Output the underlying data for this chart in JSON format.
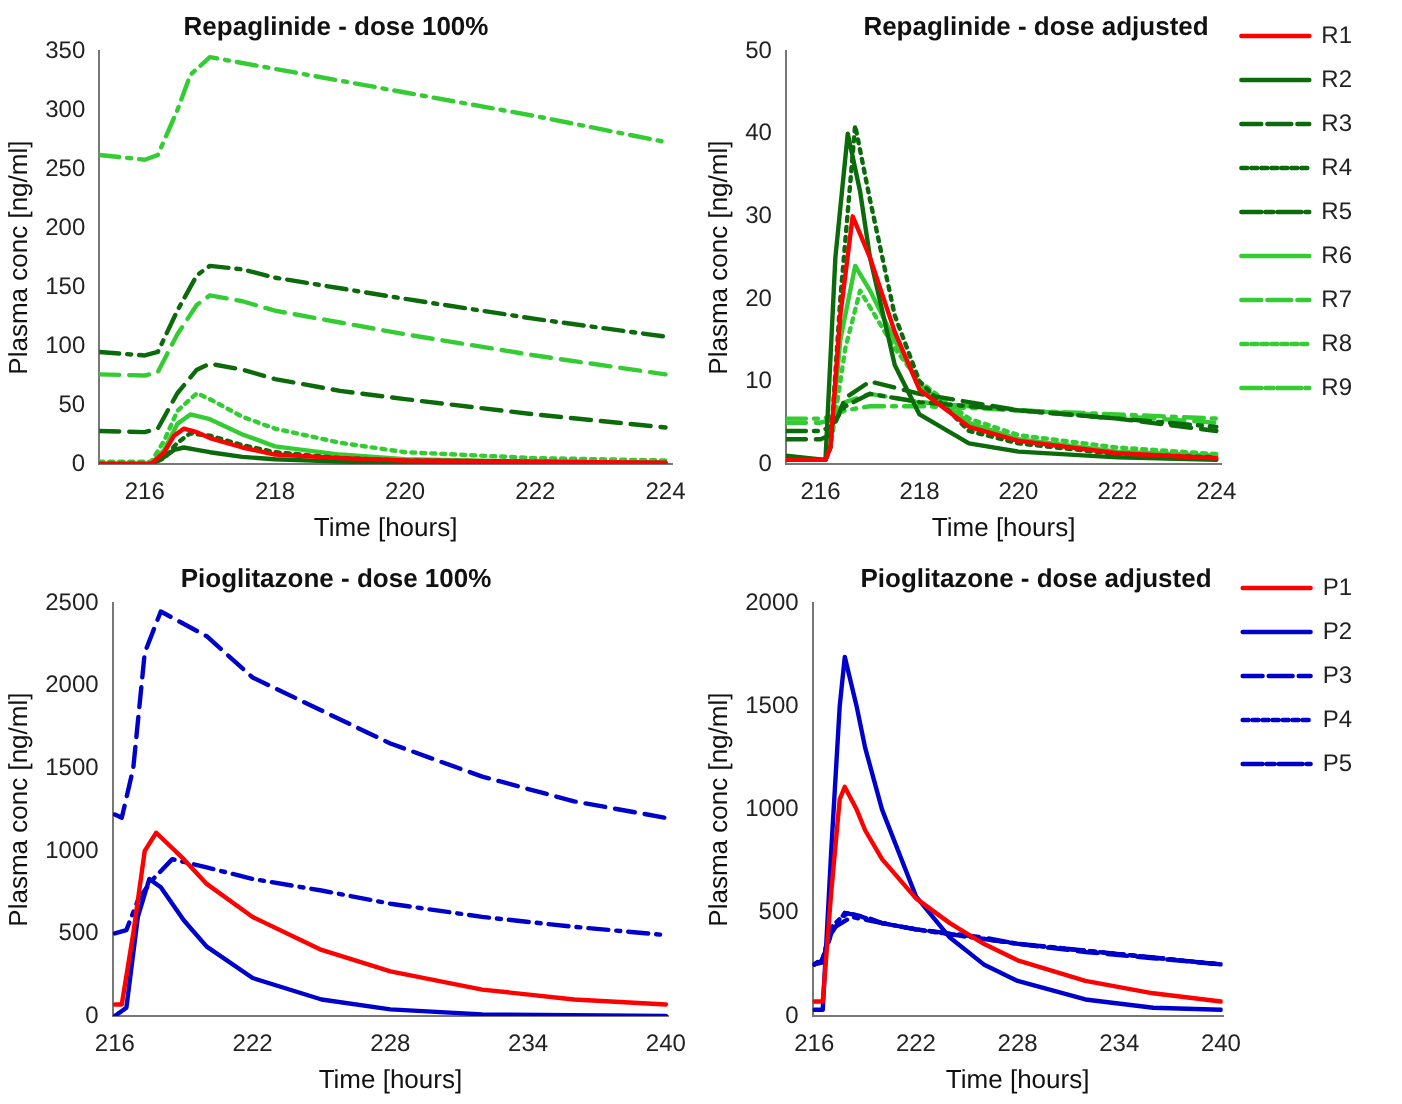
{
  "chart_data": [
    {
      "type": "line",
      "title": "Repaglinide - dose 100%",
      "xlabel": "Time [hours]",
      "ylabel": "Plasma conc [ng/ml]",
      "xlim": [
        215.3,
        224.1
      ],
      "xticks": [
        216,
        218,
        220,
        222,
        224
      ],
      "ylim": [
        0,
        350
      ],
      "yticks": [
        0,
        50,
        100,
        150,
        200,
        250,
        300,
        350
      ],
      "grid": false,
      "legend": false,
      "marker": "none",
      "series": [
        {
          "color": "#ff0000",
          "line_style": "solid",
          "x": [
            215.3,
            216.1,
            216.3,
            216.45,
            216.6,
            216.8,
            217,
            217.5,
            218,
            219,
            220,
            222,
            224
          ],
          "values": [
            0,
            0,
            10,
            24,
            30,
            27,
            22,
            14,
            8,
            5,
            3,
            2,
            1
          ]
        },
        {
          "color": "#0b6b0b",
          "line_style": "solid",
          "x": [
            215.3,
            216.1,
            216.3,
            216.45,
            216.6,
            216.8,
            217,
            217.5,
            218,
            219,
            220,
            222,
            224
          ],
          "values": [
            0,
            0,
            6,
            12,
            14,
            12,
            10,
            6,
            4,
            2,
            1,
            1,
            0
          ]
        },
        {
          "color": "#0b6b0b",
          "line_style": "dashed",
          "x": [
            215.3,
            216,
            216.2,
            216.5,
            216.8,
            217,
            217.5,
            218,
            219,
            220,
            222,
            224
          ],
          "values": [
            28,
            27,
            30,
            60,
            80,
            85,
            80,
            72,
            62,
            55,
            42,
            31
          ]
        },
        {
          "color": "#0b6b0b",
          "line_style": "dotted",
          "x": [
            215.3,
            216.1,
            216.3,
            216.5,
            216.7,
            217,
            217.5,
            218,
            219,
            220,
            222,
            224
          ],
          "values": [
            0,
            0,
            5,
            18,
            26,
            24,
            16,
            10,
            5,
            3,
            2,
            1
          ]
        },
        {
          "color": "#0b6b0b",
          "line_style": "dashdot",
          "x": [
            215.3,
            216,
            216.2,
            216.5,
            216.8,
            217,
            217.5,
            218,
            219,
            220,
            222,
            224
          ],
          "values": [
            95,
            92,
            95,
            130,
            160,
            168,
            165,
            158,
            149,
            140,
            123,
            108
          ]
        },
        {
          "color": "#33cc33",
          "line_style": "solid",
          "x": [
            215.3,
            216.1,
            216.3,
            216.5,
            216.7,
            217,
            217.5,
            218,
            219,
            220,
            222,
            224
          ],
          "values": [
            0,
            0,
            12,
            34,
            42,
            38,
            25,
            15,
            8,
            4,
            2,
            1
          ]
        },
        {
          "color": "#33cc33",
          "line_style": "dashed",
          "x": [
            215.3,
            216,
            216.2,
            216.5,
            216.8,
            217,
            217.5,
            218,
            219,
            220,
            222,
            224
          ],
          "values": [
            76,
            75,
            78,
            110,
            135,
            143,
            138,
            130,
            120,
            110,
            92,
            76
          ]
        },
        {
          "color": "#33cc33",
          "line_style": "dotted",
          "x": [
            215.3,
            216.1,
            216.3,
            216.5,
            216.8,
            217,
            217.5,
            218,
            219,
            220,
            222,
            224
          ],
          "values": [
            2,
            2,
            20,
            45,
            60,
            55,
            40,
            30,
            18,
            10,
            5,
            3
          ]
        },
        {
          "color": "#33cc33",
          "line_style": "dashdot",
          "x": [
            215.3,
            216,
            216.2,
            216.5,
            216.7,
            217,
            218,
            219,
            220,
            222,
            224
          ],
          "values": [
            262,
            258,
            262,
            300,
            330,
            345,
            335,
            325,
            315,
            295,
            273
          ]
        }
      ]
    },
    {
      "type": "line",
      "title": "Repaglinide - dose adjusted",
      "xlabel": "Time [hours]",
      "ylabel": "Plasma conc [ng/ml]",
      "xlim": [
        215.3,
        224.1
      ],
      "xticks": [
        216,
        218,
        220,
        222,
        224
      ],
      "ylim": [
        0,
        50
      ],
      "yticks": [
        0,
        10,
        20,
        30,
        40,
        50
      ],
      "grid": false,
      "legend": "top right",
      "marker": "none",
      "series": [
        {
          "name": "R1",
          "color": "#ff0000",
          "line_style": "solid",
          "x": [
            215.3,
            216.1,
            216.2,
            216.4,
            216.65,
            217,
            217.5,
            218,
            219,
            220,
            222,
            224
          ],
          "values": [
            0.5,
            0.5,
            2,
            18,
            30,
            25,
            16,
            9,
            4.5,
            2.8,
            1.3,
            0.7
          ]
        },
        {
          "name": "R2",
          "color": "#0b6b0b",
          "line_style": "solid",
          "x": [
            215.3,
            216.1,
            216.3,
            216.55,
            216.8,
            217,
            217.5,
            218,
            219,
            220,
            222,
            224
          ],
          "values": [
            1,
            0.5,
            25,
            40,
            33,
            25,
            12,
            6,
            2.5,
            1.5,
            0.8,
            0.5
          ]
        },
        {
          "name": "R3",
          "color": "#0b6b0b",
          "line_style": "dashed",
          "x": [
            215.3,
            216,
            216.2,
            216.5,
            217,
            218,
            219,
            220,
            222,
            224
          ],
          "values": [
            3,
            3,
            3.5,
            8,
            10,
            8.5,
            7.5,
            6.5,
            5.5,
            4
          ]
        },
        {
          "name": "R4",
          "color": "#0b6b0b",
          "line_style": "dotted",
          "x": [
            215.3,
            216.1,
            216.2,
            216.4,
            216.7,
            217,
            217.5,
            218,
            219,
            220,
            222,
            224
          ],
          "values": [
            0.5,
            0.5,
            2,
            20,
            41,
            32,
            18,
            10,
            4,
            2.5,
            1.2,
            0.8
          ]
        },
        {
          "name": "R5",
          "color": "#0b6b0b",
          "line_style": "dashdot",
          "x": [
            215.3,
            216,
            216.2,
            216.5,
            217,
            218,
            219,
            220,
            222,
            224
          ],
          "values": [
            4,
            4,
            4.5,
            7,
            8.5,
            7.5,
            7,
            6.5,
            5.5,
            4.5
          ]
        },
        {
          "name": "R6",
          "color": "#33cc33",
          "line_style": "solid",
          "x": [
            215.3,
            216.1,
            216.2,
            216.4,
            216.7,
            217,
            217.5,
            218,
            219,
            220,
            222,
            224
          ],
          "values": [
            0.5,
            0.5,
            2,
            15,
            24,
            21,
            15,
            9.5,
            5,
            3,
            1.5,
            1
          ]
        },
        {
          "name": "R7",
          "color": "#33cc33",
          "line_style": "dashed",
          "x": [
            215.3,
            216,
            216.2,
            216.5,
            217,
            218,
            219,
            220,
            222,
            224
          ],
          "values": [
            5,
            5,
            5.3,
            7.5,
            8.5,
            7.5,
            7,
            6.5,
            5.8,
            5
          ]
        },
        {
          "name": "R8",
          "color": "#33cc33",
          "line_style": "dotted",
          "x": [
            215.3,
            216.1,
            216.2,
            216.5,
            216.8,
            217,
            217.5,
            218,
            219,
            220,
            222,
            224
          ],
          "values": [
            0.5,
            0.5,
            2,
            14,
            21,
            19,
            14,
            10,
            5.5,
            3.5,
            2,
            1.2
          ]
        },
        {
          "name": "R9",
          "color": "#33cc33",
          "line_style": "dashdot",
          "x": [
            215.3,
            216,
            216.2,
            216.5,
            217,
            218,
            219,
            220,
            222,
            224
          ],
          "values": [
            5.5,
            5.5,
            5.7,
            6.5,
            7,
            7,
            6.8,
            6.5,
            6,
            5.5
          ]
        }
      ]
    },
    {
      "type": "line",
      "title": "Pioglitazone - dose 100%",
      "xlabel": "Time [hours]",
      "ylabel": "Plasma conc [ng/ml]",
      "xlim": [
        215.9,
        240.1
      ],
      "xticks": [
        216,
        222,
        228,
        234,
        240
      ],
      "ylim": [
        0,
        2500
      ],
      "yticks": [
        0,
        500,
        1000,
        1500,
        2000,
        2500
      ],
      "grid": false,
      "legend": false,
      "marker": "none",
      "series": [
        {
          "color": "#ff0000",
          "line_style": "solid",
          "x": [
            216,
            216.3,
            216.8,
            217.3,
            217.8,
            219,
            220,
            222,
            225,
            228,
            232,
            236,
            240
          ],
          "values": [
            70,
            70,
            500,
            1000,
            1110,
            950,
            800,
            600,
            400,
            270,
            160,
            100,
            70
          ]
        },
        {
          "color": "#0000cc",
          "line_style": "solid",
          "x": [
            216,
            216.5,
            217,
            217.5,
            218,
            219,
            220,
            222,
            225,
            228,
            232,
            240
          ],
          "values": [
            0,
            50,
            600,
            830,
            780,
            580,
            420,
            230,
            100,
            40,
            10,
            0
          ]
        },
        {
          "color": "#0000cc",
          "line_style": "dashed",
          "x": [
            216,
            216.3,
            216.8,
            217.3,
            218,
            220,
            222,
            225,
            228,
            232,
            236,
            240
          ],
          "values": [
            1220,
            1200,
            1500,
            2200,
            2450,
            2300,
            2050,
            1850,
            1650,
            1450,
            1300,
            1200
          ]
        },
        {
          "color": "#0000cc",
          "line_style": "dashdot",
          "x": [
            216,
            216.5,
            217,
            217.6,
            218.5,
            220,
            222,
            225,
            228,
            232,
            236,
            240
          ],
          "values": [
            500,
            520,
            700,
            820,
            950,
            900,
            830,
            760,
            680,
            600,
            540,
            490
          ]
        }
      ]
    },
    {
      "type": "line",
      "title": "Pioglitazone - dose adjusted",
      "xlabel": "Time [hours]",
      "ylabel": "Plasma conc [ng/ml]",
      "xlim": [
        215.9,
        240.1
      ],
      "xticks": [
        216,
        222,
        228,
        234,
        240
      ],
      "ylim": [
        0,
        2000
      ],
      "yticks": [
        0,
        500,
        1000,
        1500,
        2000
      ],
      "grid": false,
      "legend": "top right",
      "marker": "none",
      "series": [
        {
          "name": "P1",
          "color": "#ff0000",
          "line_style": "solid",
          "x": [
            216,
            216.5,
            217,
            217.5,
            217.8,
            218.5,
            219,
            220,
            222,
            224,
            226,
            228,
            232,
            236,
            240
          ],
          "values": [
            70,
            70,
            600,
            1050,
            1110,
            1000,
            900,
            760,
            570,
            450,
            350,
            270,
            170,
            110,
            70
          ]
        },
        {
          "name": "P2",
          "color": "#0000cc",
          "line_style": "solid",
          "x": [
            216,
            216.5,
            217,
            217.5,
            217.8,
            218.5,
            219,
            220,
            222,
            224,
            226,
            228,
            232,
            236,
            240
          ],
          "values": [
            30,
            30,
            800,
            1500,
            1740,
            1500,
            1300,
            1000,
            580,
            380,
            250,
            170,
            80,
            40,
            30
          ]
        },
        {
          "name": "P3",
          "color": "#0000cc",
          "line_style": "dashed",
          "x": [
            216,
            216.5,
            217,
            217.8,
            219,
            220,
            222,
            226,
            228,
            232,
            236,
            240
          ],
          "values": [
            250,
            260,
            400,
            500,
            480,
            450,
            420,
            380,
            350,
            310,
            280,
            250
          ]
        },
        {
          "name": "P4",
          "color": "#0000cc",
          "line_style": "dotted",
          "x": [
            216,
            216.5,
            217,
            217.5,
            218,
            220,
            222,
            228,
            234,
            240
          ],
          "values": [
            250,
            280,
            430,
            470,
            500,
            450,
            420,
            350,
            300,
            250
          ]
        },
        {
          "name": "P5",
          "color": "#0000cc",
          "line_style": "dashdot",
          "x": [
            216,
            216.5,
            217,
            218.2,
            220,
            222,
            228,
            234,
            240
          ],
          "values": [
            250,
            270,
            420,
            480,
            450,
            420,
            350,
            300,
            250
          ]
        }
      ]
    }
  ]
}
